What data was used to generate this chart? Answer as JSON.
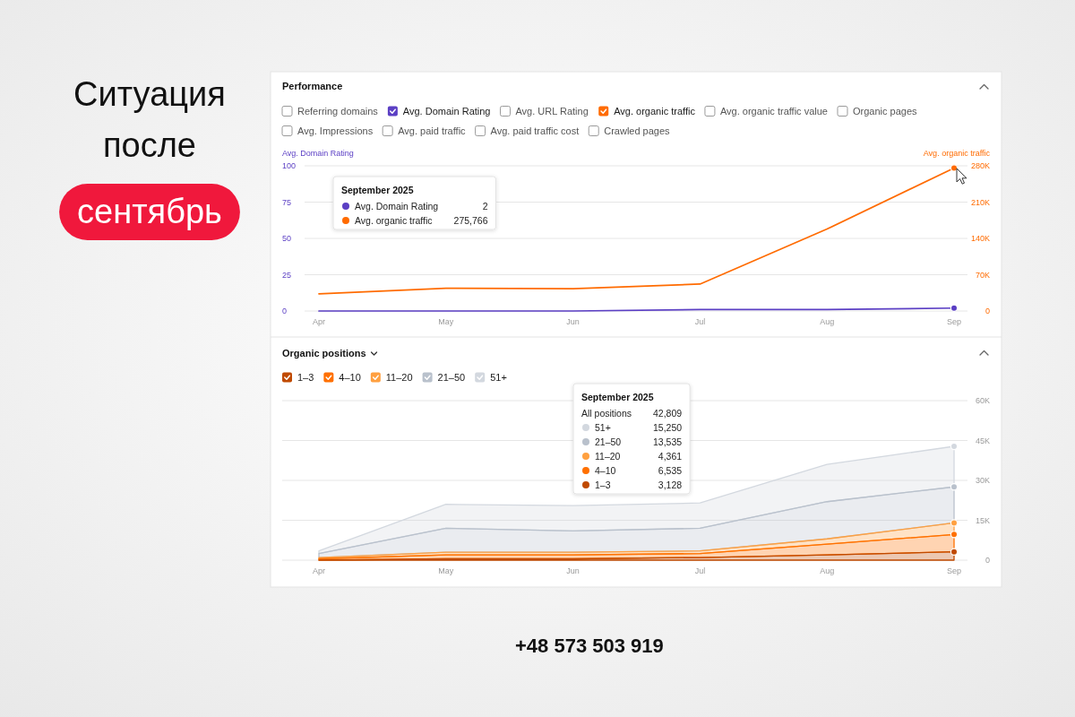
{
  "chart_data": [
    {
      "type": "line",
      "title": "Performance",
      "ylabel": "Avg. Domain Rating",
      "y2label": "Avg. organic traffic",
      "categories": [
        "Apr",
        "May",
        "Jun",
        "Jul",
        "Aug",
        "Sep"
      ],
      "series": [
        {
          "name": "Avg. Domain Rating",
          "color": "#5b3fc4",
          "values": [
            0,
            0,
            0,
            1,
            1,
            2
          ]
        },
        {
          "name": "Avg. organic traffic",
          "color": "#ff6b00",
          "axis": "y2",
          "values": [
            33000,
            44000,
            43000,
            52000,
            158000,
            275766
          ]
        }
      ],
      "ylim": [
        0,
        100
      ],
      "yticks": [
        0,
        25,
        50,
        75,
        100
      ],
      "y2lim": [
        0,
        280000
      ],
      "y2ticks": [
        0,
        {
          "value": 70000,
          "label": "70K"
        },
        {
          "value": 140000,
          "label": "140K"
        },
        {
          "value": 210000,
          "label": "210K"
        },
        {
          "value": 280000,
          "label": "280K"
        }
      ],
      "grid": "y",
      "legend": "top left",
      "annotations": [
        "Ситуация после",
        "сентябрь",
        "September 2025",
        "2",
        "275,766",
        "Referring domains",
        "Avg. URL Rating",
        "Avg. organic traffic value",
        "Organic pages",
        "Avg. Impressions",
        "Avg. paid traffic",
        "Avg. paid traffic cost",
        "Crawled pages"
      ]
    },
    {
      "type": "area",
      "title": "Organic positions",
      "stacked": true,
      "categories": [
        "Apr",
        "May",
        "Jun",
        "Jul",
        "Aug",
        "Sep"
      ],
      "series": [
        {
          "name": "1–3",
          "color": "#c04a00",
          "values": [
            0,
            500,
            500,
            1000,
            2000,
            3128
          ]
        },
        {
          "name": "4–10",
          "color": "#ff7000",
          "values": [
            500,
            1500,
            1500,
            1500,
            4000,
            6535
          ]
        },
        {
          "name": "11–20",
          "color": "#ffa040",
          "values": [
            500,
            1000,
            1000,
            1000,
            2000,
            4361
          ]
        },
        {
          "name": "21–50",
          "color": "#b9c1cc",
          "values": [
            1500,
            9000,
            8000,
            8500,
            14000,
            13535
          ]
        },
        {
          "name": "51+",
          "color": "#d3d8df",
          "values": [
            1000,
            9000,
            9500,
            9500,
            14000,
            15250
          ]
        }
      ],
      "ylim": [
        0,
        60000
      ],
      "yticks": [
        0,
        {
          "value": 15000,
          "label": "15K"
        },
        {
          "value": 30000,
          "label": "30K"
        },
        {
          "value": 45000,
          "label": "45K"
        },
        {
          "value": 60000,
          "label": "60K"
        }
      ],
      "grid": "y",
      "legend": "top left",
      "annotations": [
        "September 2025",
        "All positions",
        "42,809",
        "15,250",
        "13,535",
        "4,361",
        "6,535",
        "3,128",
        "+48 573 503 919"
      ]
    }
  ]
}
